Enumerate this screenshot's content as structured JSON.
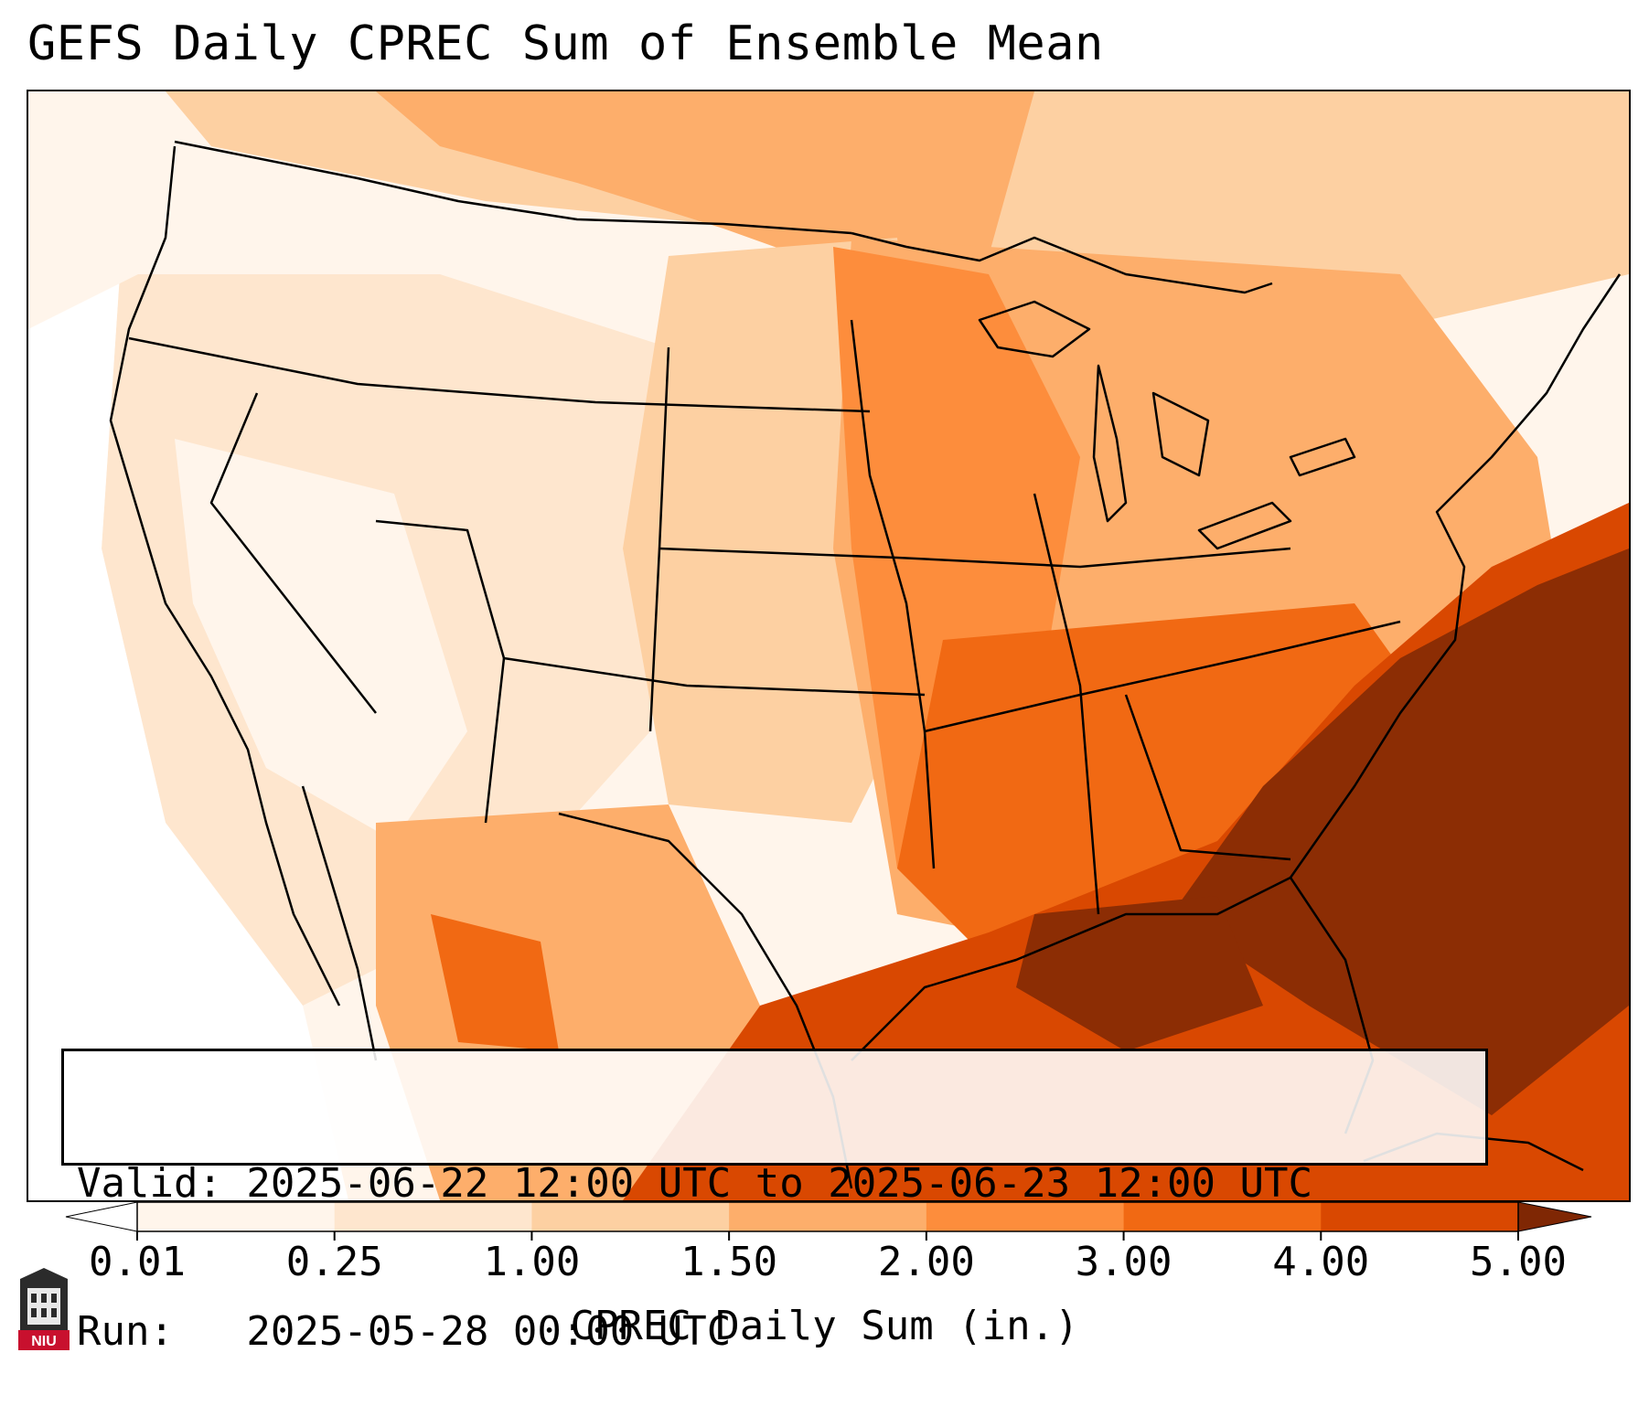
{
  "title": "GEFS Daily CPREC Sum of Ensemble Mean",
  "info": {
    "valid_line": "Valid: 2025-06-22 12:00 UTC to 2025-06-23 12:00 UTC",
    "run_line": "Run:   2025-05-28 00:00 UTC"
  },
  "colorbar": {
    "label": "CPREC Daily Sum (in.)",
    "ticks": [
      "0.01",
      "0.25",
      "1.00",
      "1.50",
      "2.00",
      "3.00",
      "4.00",
      "5.00"
    ],
    "colors": [
      "#fff5eb",
      "#fee6ce",
      "#fdd0a2",
      "#fdae6b",
      "#fd8d3c",
      "#f16913",
      "#d94801",
      "#8c2d04"
    ],
    "under_color": "#ffffff",
    "over_color": "#7f2704"
  },
  "logo": {
    "text": "NIU",
    "icon": "niu-logo-icon"
  },
  "map": {
    "region": "Contiguous United States",
    "field": "CPREC daily sum",
    "heaviest_area": "Southeast US / western Atlantic"
  }
}
